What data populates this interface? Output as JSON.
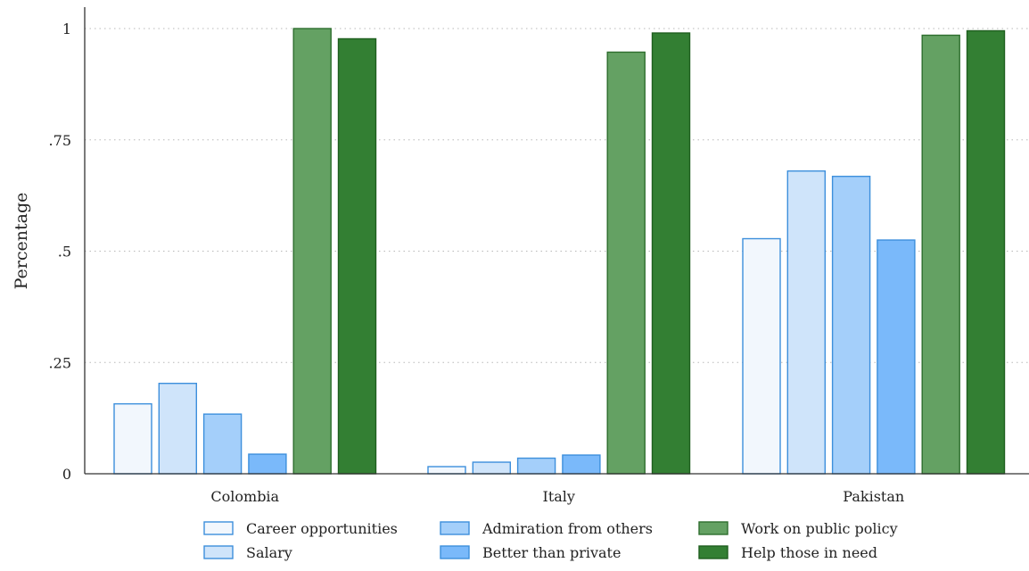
{
  "chart_data": {
    "type": "bar",
    "title": "",
    "xlabel": "",
    "ylabel": "Percentage",
    "ylim": [
      0,
      1.05
    ],
    "yticks": [
      {
        "value": 0,
        "label": "0"
      },
      {
        "value": 0.25,
        "label": ".25"
      },
      {
        "value": 0.5,
        "label": ".5"
      },
      {
        "value": 0.75,
        "label": ".75"
      },
      {
        "value": 1,
        "label": "1"
      }
    ],
    "grid": true,
    "legend_position": "bottom",
    "categories": [
      "Colombia",
      "Italy",
      "Pakistan"
    ],
    "series": [
      {
        "name": "Career opportunities",
        "fill": "#f2f7fd",
        "stroke": "#3d8fdc",
        "values": [
          0.157,
          0.016,
          0.528
        ]
      },
      {
        "name": "Salary",
        "fill": "#cfe4fa",
        "stroke": "#3d8fdc",
        "values": [
          0.203,
          0.026,
          0.68
        ]
      },
      {
        "name": "Admiration from others",
        "fill": "#a4cffa",
        "stroke": "#3d8fdc",
        "values": [
          0.134,
          0.035,
          0.668
        ]
      },
      {
        "name": "Better than private",
        "fill": "#7ab9fa",
        "stroke": "#3d8fdc",
        "values": [
          0.044,
          0.042,
          0.525
        ]
      },
      {
        "name": "Work on public policy",
        "fill": "#64a163",
        "stroke": "#2e6e2e",
        "values": [
          1.0,
          0.947,
          0.985
        ]
      },
      {
        "name": "Help those in need",
        "fill": "#337f33",
        "stroke": "#1f5f1f",
        "values": [
          0.977,
          0.99,
          0.995
        ]
      }
    ]
  }
}
